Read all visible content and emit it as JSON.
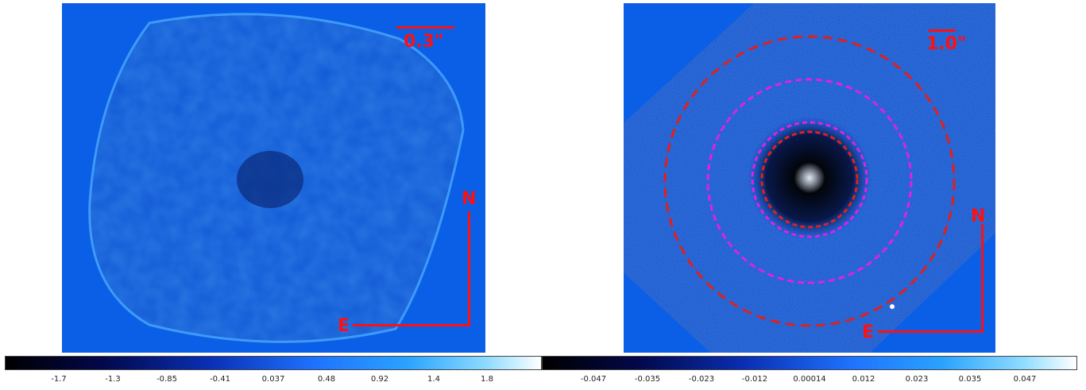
{
  "colors": {
    "panel_background": "#0a5fe6",
    "annotation": "#ff1010",
    "ring_red": "#e0201c",
    "ring_magenta": "#e020e8"
  },
  "left_panel": {
    "scale_label": "0.3\"",
    "compass_north": "N",
    "compass_east": "E",
    "colorbar_ticks": [
      "-1.7",
      "-1.3",
      "-0.85",
      "-0.41",
      "0.037",
      "0.48",
      "0.92",
      "1.4",
      "1.8"
    ]
  },
  "right_panel": {
    "scale_label": "1.0\"",
    "compass_north": "N",
    "compass_east": "E",
    "colorbar_ticks": [
      "-0.047",
      "-0.035",
      "-0.023",
      "-0.012",
      "0.00014",
      "0.012",
      "0.023",
      "0.035",
      "0.047"
    ]
  }
}
